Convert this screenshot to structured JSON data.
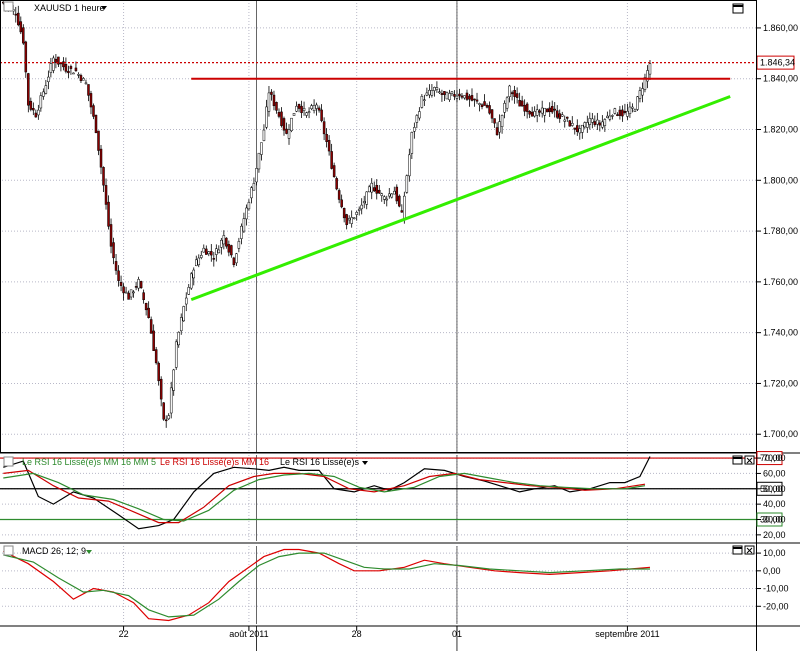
{
  "panels": {
    "price": {
      "title": "XAUUSD 1 heure",
      "last_price_label": "1.846,34"
    },
    "rsi": {
      "legend": [
        "Le RSI 16 Lissé(e)s MM 16 MM 5",
        "Le RSI 16 Lissé(e)s MM 16",
        "Le RSI 16 Lissé(e)s"
      ],
      "level_labels": [
        "70,00",
        "50,00",
        "30,00"
      ]
    },
    "macd": {
      "title": "MACD 26; 12; 9"
    }
  },
  "colors": {
    "background": "#ffffff",
    "up_candle": "#ffffff",
    "down_candle": "#8b0000",
    "resistance": "#cc0000",
    "support": "#33ee00",
    "rsi_main": "#000000",
    "rsi_ma16": "#cc0000",
    "rsi_ma5": "#2e8b2e",
    "level_line": "#cc0000",
    "level_mid": "#000000",
    "level_low": "#2e8b2e",
    "macd_line": "#dd0000",
    "signal_line": "#2e8b2e",
    "grid": "#b8b8c8",
    "price_dot_line": "#cc0000"
  },
  "icons": [
    "dropdown-arrow-icon",
    "maximize-icon",
    "close-icon"
  ],
  "chart_data": [
    {
      "type": "candlestick",
      "title": "XAUUSD 1 heure",
      "x_ticks": [
        "22",
        "août 2011",
        "28",
        "01",
        "septembre 2011"
      ],
      "y_ticks": [
        "1.700,00",
        "1.720,00",
        "1.740,00",
        "1.760,00",
        "1.780,00",
        "1.800,00",
        "1.820,00",
        "1.840,00",
        "1.860,00"
      ],
      "ylim": [
        1693,
        1871
      ],
      "last_price": 1846.34,
      "anchors": [
        {
          "bar": 0,
          "price": 1870
        },
        {
          "bar": 5,
          "price": 1866
        },
        {
          "bar": 8,
          "price": 1855
        },
        {
          "bar": 10,
          "price": 1830
        },
        {
          "bar": 13,
          "price": 1826
        },
        {
          "bar": 17,
          "price": 1838
        },
        {
          "bar": 20,
          "price": 1848
        },
        {
          "bar": 25,
          "price": 1844
        },
        {
          "bar": 29,
          "price": 1843
        },
        {
          "bar": 33,
          "price": 1838
        },
        {
          "bar": 37,
          "price": 1820
        },
        {
          "bar": 40,
          "price": 1798
        },
        {
          "bar": 43,
          "price": 1774
        },
        {
          "bar": 46,
          "price": 1760
        },
        {
          "bar": 50,
          "price": 1754
        },
        {
          "bar": 54,
          "price": 1760
        },
        {
          "bar": 58,
          "price": 1746
        },
        {
          "bar": 61,
          "price": 1728
        },
        {
          "bar": 64,
          "price": 1705
        },
        {
          "bar": 66,
          "price": 1708
        },
        {
          "bar": 69,
          "price": 1735
        },
        {
          "bar": 72,
          "price": 1750
        },
        {
          "bar": 76,
          "price": 1766
        },
        {
          "bar": 80,
          "price": 1773
        },
        {
          "bar": 84,
          "price": 1770
        },
        {
          "bar": 88,
          "price": 1778
        },
        {
          "bar": 92,
          "price": 1768
        },
        {
          "bar": 96,
          "price": 1785
        },
        {
          "bar": 100,
          "price": 1800
        },
        {
          "bar": 104,
          "price": 1820
        },
        {
          "bar": 106,
          "price": 1835
        },
        {
          "bar": 109,
          "price": 1828
        },
        {
          "bar": 113,
          "price": 1818
        },
        {
          "bar": 117,
          "price": 1830
        },
        {
          "bar": 121,
          "price": 1826
        },
        {
          "bar": 125,
          "price": 1830
        },
        {
          "bar": 129,
          "price": 1815
        },
        {
          "bar": 133,
          "price": 1797
        },
        {
          "bar": 137,
          "price": 1783
        },
        {
          "bar": 142,
          "price": 1788
        },
        {
          "bar": 147,
          "price": 1798
        },
        {
          "bar": 152,
          "price": 1793
        },
        {
          "bar": 156,
          "price": 1796
        },
        {
          "bar": 159,
          "price": 1786
        },
        {
          "bar": 163,
          "price": 1818
        },
        {
          "bar": 167,
          "price": 1832
        },
        {
          "bar": 172,
          "price": 1836
        },
        {
          "bar": 176,
          "price": 1833
        },
        {
          "bar": 182,
          "price": 1834
        },
        {
          "bar": 188,
          "price": 1831
        },
        {
          "bar": 193,
          "price": 1829
        },
        {
          "bar": 197,
          "price": 1819
        },
        {
          "bar": 202,
          "price": 1836
        },
        {
          "bar": 206,
          "price": 1830
        },
        {
          "bar": 212,
          "price": 1826
        },
        {
          "bar": 218,
          "price": 1828
        },
        {
          "bar": 224,
          "price": 1824
        },
        {
          "bar": 230,
          "price": 1819
        },
        {
          "bar": 234,
          "price": 1824
        },
        {
          "bar": 238,
          "price": 1822
        },
        {
          "bar": 243,
          "price": 1827
        },
        {
          "bar": 248,
          "price": 1826
        },
        {
          "bar": 252,
          "price": 1829
        },
        {
          "bar": 256,
          "price": 1840
        },
        {
          "bar": 258,
          "price": 1846
        }
      ],
      "resistance": {
        "price": 1840,
        "from_bar": 75,
        "to_bar": 290
      },
      "support": {
        "from": {
          "bar": 75,
          "price": 1753
        },
        "to": {
          "bar": 290,
          "price": 1833
        }
      }
    },
    {
      "type": "line",
      "title": "RSI 16",
      "y_ticks": [
        "20,00",
        "30,00",
        "40,00",
        "50,00",
        "60,00",
        "70,00"
      ],
      "ylim": [
        16,
        72
      ],
      "levels": [
        70,
        50,
        30
      ],
      "series": [
        {
          "points": [
            [
              0,
              64
            ],
            [
              8,
              68
            ],
            [
              14,
              45
            ],
            [
              20,
              40
            ],
            [
              28,
              48
            ],
            [
              36,
              44
            ],
            [
              46,
              33
            ],
            [
              54,
              24
            ],
            [
              62,
              26
            ],
            [
              68,
              30
            ],
            [
              76,
              48
            ],
            [
              84,
              60
            ],
            [
              92,
              64
            ],
            [
              100,
              63
            ],
            [
              106,
              62
            ],
            [
              112,
              64
            ],
            [
              118,
              62
            ],
            [
              126,
              62
            ],
            [
              132,
              50
            ],
            [
              140,
              48
            ],
            [
              148,
              52
            ],
            [
              154,
              49
            ],
            [
              160,
              54
            ],
            [
              168,
              63
            ],
            [
              176,
              62
            ],
            [
              184,
              58
            ],
            [
              192,
              55
            ],
            [
              198,
              52
            ],
            [
              206,
              48
            ],
            [
              212,
              50
            ],
            [
              220,
              52
            ],
            [
              226,
              48
            ],
            [
              234,
              50
            ],
            [
              242,
              54
            ],
            [
              248,
              54
            ],
            [
              254,
              58
            ],
            [
              258,
              71
            ]
          ]
        },
        {
          "points": [
            [
              0,
              60
            ],
            [
              10,
              62
            ],
            [
              20,
              52
            ],
            [
              30,
              44
            ],
            [
              42,
              42
            ],
            [
              52,
              35
            ],
            [
              62,
              28
            ],
            [
              70,
              28
            ],
            [
              80,
              38
            ],
            [
              90,
              52
            ],
            [
              100,
              58
            ],
            [
              108,
              60
            ],
            [
              118,
              60
            ],
            [
              128,
              58
            ],
            [
              138,
              50
            ],
            [
              148,
              48
            ],
            [
              160,
              52
            ],
            [
              170,
              58
            ],
            [
              180,
              60
            ],
            [
              190,
              56
            ],
            [
              200,
              54
            ],
            [
              210,
              52
            ],
            [
              220,
              51
            ],
            [
              232,
              49
            ],
            [
              244,
              50
            ],
            [
              256,
              53
            ]
          ]
        },
        {
          "points": [
            [
              0,
              57
            ],
            [
              12,
              60
            ],
            [
              22,
              54
            ],
            [
              32,
              46
            ],
            [
              44,
              43
            ],
            [
              54,
              37
            ],
            [
              64,
              30
            ],
            [
              72,
              29
            ],
            [
              82,
              36
            ],
            [
              92,
              49
            ],
            [
              102,
              56
            ],
            [
              112,
              59
            ],
            [
              122,
              60
            ],
            [
              132,
              58
            ],
            [
              142,
              51
            ],
            [
              152,
              48
            ],
            [
              164,
              51
            ],
            [
              174,
              58
            ],
            [
              184,
              60
            ],
            [
              194,
              57
            ],
            [
              204,
              54
            ],
            [
              214,
              52
            ],
            [
              224,
              51
            ],
            [
              236,
              50
            ],
            [
              248,
              50
            ],
            [
              256,
              52
            ]
          ]
        }
      ]
    },
    {
      "type": "line",
      "title": "MACD 26; 12; 9",
      "y_ticks": [
        "-20,00",
        "-10,00",
        "0,00",
        "10,00"
      ],
      "ylim": [
        -30,
        14
      ],
      "series": [
        {
          "name": "MACD",
          "points": [
            [
              0,
              11
            ],
            [
              10,
              4
            ],
            [
              20,
              -6
            ],
            [
              28,
              -16
            ],
            [
              36,
              -10
            ],
            [
              44,
              -12
            ],
            [
              52,
              -18
            ],
            [
              58,
              -27
            ],
            [
              66,
              -28
            ],
            [
              74,
              -25
            ],
            [
              82,
              -18
            ],
            [
              90,
              -6
            ],
            [
              98,
              2
            ],
            [
              104,
              8
            ],
            [
              112,
              12
            ],
            [
              118,
              12
            ],
            [
              126,
              10
            ],
            [
              134,
              4
            ],
            [
              140,
              0
            ],
            [
              150,
              0
            ],
            [
              160,
              2
            ],
            [
              168,
              6
            ],
            [
              176,
              4
            ],
            [
              186,
              2
            ],
            [
              196,
              0
            ],
            [
              206,
              -1
            ],
            [
              218,
              -2
            ],
            [
              230,
              -1
            ],
            [
              242,
              0
            ],
            [
              258,
              2
            ]
          ]
        },
        {
          "name": "Signal",
          "points": [
            [
              0,
              9
            ],
            [
              12,
              5
            ],
            [
              22,
              -4
            ],
            [
              32,
              -12
            ],
            [
              40,
              -11
            ],
            [
              50,
              -14
            ],
            [
              58,
              -22
            ],
            [
              66,
              -26
            ],
            [
              76,
              -25
            ],
            [
              86,
              -16
            ],
            [
              94,
              -6
            ],
            [
              102,
              3
            ],
            [
              110,
              8
            ],
            [
              118,
              10
            ],
            [
              128,
              10
            ],
            [
              136,
              6
            ],
            [
              144,
              2
            ],
            [
              152,
              1
            ],
            [
              162,
              1
            ],
            [
              172,
              4
            ],
            [
              182,
              3
            ],
            [
              194,
              1
            ],
            [
              206,
              0
            ],
            [
              218,
              -1
            ],
            [
              232,
              0
            ],
            [
              246,
              1
            ],
            [
              258,
              1
            ]
          ]
        }
      ]
    }
  ]
}
